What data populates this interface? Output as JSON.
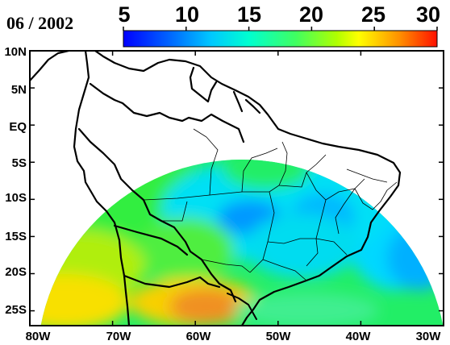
{
  "title": "06 / 2002",
  "colorbar": {
    "ticks": [
      "5",
      "10",
      "15",
      "20",
      "25",
      "30"
    ],
    "values": [
      5,
      10,
      15,
      20,
      25,
      30
    ],
    "range": [
      5,
      30
    ],
    "colors": [
      "#0000ff",
      "#0080ff",
      "#00e5ff",
      "#40ff80",
      "#c0ff00",
      "#ffff00",
      "#ffa000",
      "#ff2000"
    ]
  },
  "map": {
    "lon_range": [
      -80,
      -30
    ],
    "lat_range": [
      -27,
      10
    ],
    "lon_ticks": [
      {
        "value": -80,
        "label": "80W"
      },
      {
        "value": -70,
        "label": "70W"
      },
      {
        "value": -60,
        "label": "60W"
      },
      {
        "value": -50,
        "label": "50W"
      },
      {
        "value": -40,
        "label": "40W"
      },
      {
        "value": -30,
        "label": "30W"
      }
    ],
    "lat_ticks": [
      {
        "value": 10,
        "label": "10N"
      },
      {
        "value": 5,
        "label": "5N"
      },
      {
        "value": 0,
        "label": "EQ"
      },
      {
        "value": -5,
        "label": "5S"
      },
      {
        "value": -10,
        "label": "10S"
      },
      {
        "value": -15,
        "label": "15S"
      },
      {
        "value": -20,
        "label": "20S"
      },
      {
        "value": -25,
        "label": "25S"
      }
    ]
  }
}
